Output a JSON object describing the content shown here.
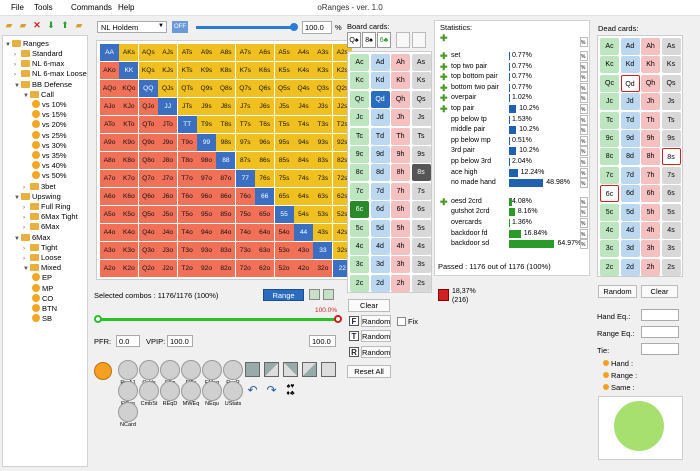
{
  "menu": {
    "file": "File",
    "tools": "Tools",
    "commands": "Commands",
    "help": "Help"
  },
  "window_title": "oRanges - ver. 1.0",
  "tree": {
    "root": "Ranges",
    "items": [
      {
        "label": "Standard",
        "lvl": 1,
        "type": "folder",
        "exp": false
      },
      {
        "label": "NL 6-max",
        "lvl": 1,
        "type": "folder",
        "exp": false
      },
      {
        "label": "NL 6-max Loose",
        "lvl": 1,
        "type": "folder",
        "exp": false
      },
      {
        "label": "BB Defense",
        "lvl": 1,
        "type": "folder",
        "exp": true
      },
      {
        "label": "Call",
        "lvl": 2,
        "type": "folder",
        "exp": true
      },
      {
        "label": "vs 10%",
        "lvl": 3,
        "type": "range"
      },
      {
        "label": "vs 15%",
        "lvl": 3,
        "type": "range"
      },
      {
        "label": "vs 20%",
        "lvl": 3,
        "type": "range"
      },
      {
        "label": "vs 25%",
        "lvl": 3,
        "type": "range"
      },
      {
        "label": "vs 30%",
        "lvl": 3,
        "type": "range"
      },
      {
        "label": "vs 35%",
        "lvl": 3,
        "type": "range"
      },
      {
        "label": "vs 40%",
        "lvl": 3,
        "type": "range"
      },
      {
        "label": "vs 50%",
        "lvl": 3,
        "type": "range"
      },
      {
        "label": "3bet",
        "lvl": 2,
        "type": "folder",
        "exp": false
      },
      {
        "label": "Upswing",
        "lvl": 1,
        "type": "folder",
        "exp": true
      },
      {
        "label": "Full Ring",
        "lvl": 2,
        "type": "folder",
        "exp": false
      },
      {
        "label": "6Max Tight",
        "lvl": 2,
        "type": "folder",
        "exp": false
      },
      {
        "label": "6Max",
        "lvl": 2,
        "type": "folder",
        "exp": false
      },
      {
        "label": "6Max",
        "lvl": 1,
        "type": "folder",
        "exp": true
      },
      {
        "label": "Tight",
        "lvl": 2,
        "type": "folder",
        "exp": false
      },
      {
        "label": "Loose",
        "lvl": 2,
        "type": "folder",
        "exp": false
      },
      {
        "label": "Mixed",
        "lvl": 2,
        "type": "folder",
        "exp": true
      },
      {
        "label": "EP",
        "lvl": 3,
        "type": "range"
      },
      {
        "label": "MP",
        "lvl": 3,
        "type": "range"
      },
      {
        "label": "CO",
        "lvl": 3,
        "type": "range"
      },
      {
        "label": "BTN",
        "lvl": 3,
        "type": "range"
      },
      {
        "label": "SB",
        "lvl": 3,
        "type": "range"
      }
    ]
  },
  "game_select": "NL Holdem",
  "off_label": "OFF",
  "percent_value": "100.0",
  "percent_sign": "%",
  "hand_grid": {
    "cells": [
      [
        "AA",
        "AKs",
        "AQs",
        "AJs",
        "ATs",
        "A9s",
        "A8s",
        "A7s",
        "A6s",
        "A5s",
        "A4s",
        "A3s",
        "A2s"
      ],
      [
        "AKo",
        "KK",
        "KQs",
        "KJs",
        "KTs",
        "K9s",
        "K8s",
        "K7s",
        "K6s",
        "K5s",
        "K4s",
        "K3s",
        "K2s"
      ],
      [
        "AQo",
        "KQo",
        "QQ",
        "QJs",
        "QTs",
        "Q9s",
        "Q8s",
        "Q7s",
        "Q6s",
        "Q5s",
        "Q4s",
        "Q3s",
        "Q2s"
      ],
      [
        "AJo",
        "KJo",
        "QJo",
        "JJ",
        "JTs",
        "J9s",
        "J8s",
        "J7s",
        "J6s",
        "J5s",
        "J4s",
        "J3s",
        "J2s"
      ],
      [
        "ATo",
        "KTo",
        "QTo",
        "JTo",
        "TT",
        "T9s",
        "T8s",
        "T7s",
        "T6s",
        "T5s",
        "T4s",
        "T3s",
        "T2s"
      ],
      [
        "A9o",
        "K9o",
        "Q9o",
        "J9o",
        "T9o",
        "99",
        "98s",
        "97s",
        "96s",
        "95s",
        "94s",
        "93s",
        "92s"
      ],
      [
        "A8o",
        "K8o",
        "Q8o",
        "J8o",
        "T8o",
        "98o",
        "88",
        "87s",
        "86s",
        "85s",
        "84s",
        "83s",
        "82s"
      ],
      [
        "A7o",
        "K7o",
        "Q7o",
        "J7o",
        "T7o",
        "97o",
        "87o",
        "77",
        "76s",
        "75s",
        "74s",
        "73s",
        "72s"
      ],
      [
        "A6o",
        "K6o",
        "Q6o",
        "J6o",
        "T6o",
        "96o",
        "86o",
        "76o",
        "66",
        "65s",
        "64s",
        "63s",
        "62s"
      ],
      [
        "A5o",
        "K5o",
        "Q5o",
        "J5o",
        "T5o",
        "95o",
        "85o",
        "75o",
        "65o",
        "55",
        "54s",
        "53s",
        "52s"
      ],
      [
        "A4o",
        "K4o",
        "Q4o",
        "J4o",
        "T4o",
        "94o",
        "84o",
        "74o",
        "64o",
        "54o",
        "44",
        "43s",
        "42s"
      ],
      [
        "A3o",
        "K3o",
        "Q3o",
        "J3o",
        "T3o",
        "93o",
        "83o",
        "73o",
        "63o",
        "53o",
        "43o",
        "33",
        "32s"
      ],
      [
        "A2o",
        "K2o",
        "Q2o",
        "J2o",
        "T2o",
        "92o",
        "82o",
        "72o",
        "62o",
        "52o",
        "42o",
        "32o",
        "22"
      ]
    ],
    "colors": {
      "pair": "#3a6fc2",
      "suited": "#f0c020",
      "offsuit": "#f07058"
    }
  },
  "selected_combos_label": "Selected combos : 1176/1176 (100%)",
  "range_button": "Range",
  "slider_pct": "100.0%",
  "pfr_label": "PFR:",
  "pfr_value": "0.0",
  "vpip_label": "VPIP:",
  "vpip_value": "100.0",
  "vpip_right": "100.0",
  "tools": [
    "PreA1",
    "Odds",
    "FEq",
    "FlTx",
    "FMng",
    "RvsR",
    "RCon",
    "CmbSt",
    "REqD",
    "MWEq",
    "NEqu",
    "UStats",
    "NCard"
  ],
  "board": {
    "title": "Board cards:",
    "cells": [
      [
        "Ac",
        "Ad",
        "Ah",
        "As"
      ],
      [
        "Kc",
        "Kd",
        "Kh",
        "Ks"
      ],
      [
        "Qc",
        "Qd",
        "Qh",
        "Qs"
      ],
      [
        "Jc",
        "Jd",
        "Jh",
        "Js"
      ],
      [
        "Tc",
        "Td",
        "Th",
        "Ts"
      ],
      [
        "9c",
        "9d",
        "9h",
        "9s"
      ],
      [
        "8c",
        "8d",
        "8h",
        "8s"
      ],
      [
        "7c",
        "7d",
        "7h",
        "7s"
      ],
      [
        "6c",
        "6d",
        "6h",
        "6s"
      ],
      [
        "5c",
        "5d",
        "5h",
        "5s"
      ],
      [
        "4c",
        "4d",
        "4h",
        "4s"
      ],
      [
        "3c",
        "3d",
        "3h",
        "3s"
      ],
      [
        "2c",
        "2d",
        "2h",
        "2s"
      ]
    ],
    "slots": [
      "Q♠",
      "8♠",
      "6♣"
    ],
    "clear": "Clear",
    "random_flop": "Random",
    "random_turn": "Random",
    "random_river": "Random",
    "fix": "Fix",
    "reset_all": "Reset All",
    "suit_colors": {
      "c": "#bde5c0",
      "d": "#bcd8f0",
      "h": "#f4c0c0",
      "s": "#d8d8d8"
    }
  },
  "statistics": {
    "title": "Statistics:",
    "rows": [
      {
        "label": "set",
        "pct": "0.77%",
        "val": 0.77,
        "plus": true
      },
      {
        "label": "top two pair",
        "pct": "0.77%",
        "val": 0.77,
        "plus": true
      },
      {
        "label": "top bottom pair",
        "pct": "0.77%",
        "val": 0.77,
        "plus": true
      },
      {
        "label": "bottom two pair",
        "pct": "0.77%",
        "val": 0.77,
        "plus": true
      },
      {
        "label": "overpair",
        "pct": "1.02%",
        "val": 1.02,
        "plus": true
      },
      {
        "label": "top pair",
        "pct": "10.2%",
        "val": 10.2,
        "plus": true
      },
      {
        "label": "pp below tp",
        "pct": "1.53%",
        "val": 1.53,
        "plus": false
      },
      {
        "label": "middle pair",
        "pct": "10.2%",
        "val": 10.2,
        "plus": false
      },
      {
        "label": "pp below mp",
        "pct": "0.51%",
        "val": 0.51,
        "plus": false
      },
      {
        "label": "3rd pair",
        "pct": "10.2%",
        "val": 10.2,
        "plus": false
      },
      {
        "label": "pp below 3rd",
        "pct": "2.04%",
        "val": 2.04,
        "plus": false
      },
      {
        "label": "ace high",
        "pct": "12.24%",
        "val": 12.24,
        "plus": false
      },
      {
        "label": "no made hand",
        "pct": "48.98%",
        "val": 48.98,
        "plus": false
      }
    ],
    "draws": [
      {
        "label": "oesd 2crd",
        "pct": "4.08%",
        "val": 4.08,
        "plus": true
      },
      {
        "label": "gutshot 2crd",
        "pct": "8.16%",
        "val": 8.16,
        "plus": false
      },
      {
        "label": "overcards",
        "pct": "1.36%",
        "val": 1.36,
        "plus": false
      },
      {
        "label": "backdoor fd",
        "pct": "16.84%",
        "val": 16.84,
        "plus": false
      },
      {
        "label": "backdoor sd",
        "pct": "64.97%",
        "val": 64.97,
        "plus": false
      }
    ],
    "passed": "Passed : 1176 out of 1176 (100%)",
    "pct_mini": "18,37%",
    "count_mini": "(216)"
  },
  "dead": {
    "title": "Dead cards:",
    "random": "Random",
    "clear": "Clear"
  },
  "equity": {
    "hand": "Hand Eq.:",
    "range": "Range Eq.:",
    "tie": "Tie:",
    "legend_hand": "Hand :",
    "legend_range": "Range :",
    "legend_same": "Same :",
    "pie_color": "#a8e070"
  }
}
